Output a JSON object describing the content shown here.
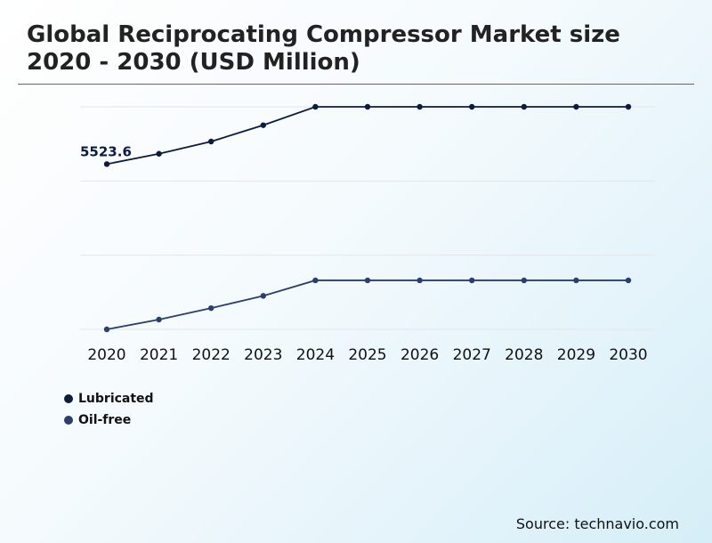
{
  "chart_data": {
    "type": "line",
    "title": "Global Reciprocating Compressor Market size 2020 - 2030 (USD Million)",
    "categories": [
      "2020",
      "2021",
      "2022",
      "2023",
      "2024",
      "2025",
      "2026",
      "2027",
      "2028",
      "2029",
      "2030"
    ],
    "series": [
      {
        "name": "Lubricated",
        "color": "#0d1b3e",
        "values": [
          5523.6,
          5650,
          5800,
          6000,
          6225,
          6225,
          6225,
          6225,
          6225,
          6225,
          6225
        ]
      },
      {
        "name": "Oil-free",
        "color": "#2c3e6b",
        "values": [
          3500,
          3620,
          3760,
          3910,
          4100,
          4100,
          4100,
          4100,
          4100,
          4100,
          4100
        ]
      }
    ],
    "annotations": [
      {
        "series": 0,
        "index": 0,
        "text": "5523.6"
      }
    ],
    "ylim": [
      3500,
      6225
    ],
    "grid": true,
    "legend_position": "bottom-left"
  },
  "source": "Source: technavio.com"
}
